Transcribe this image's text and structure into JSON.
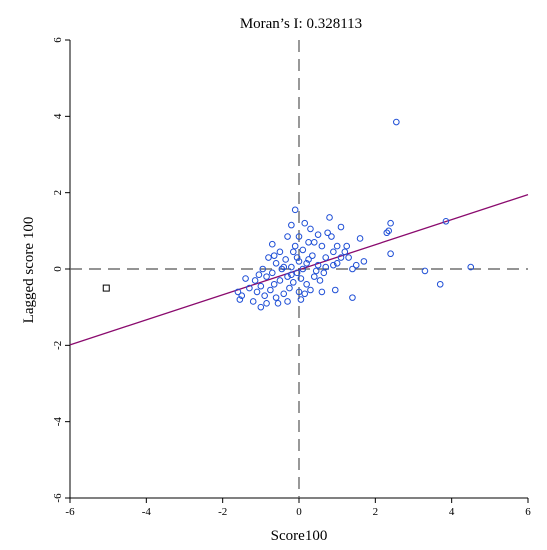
{
  "chart_data": {
    "type": "scatter",
    "title": "Moran’s I: 0.328113",
    "xlabel": "Score100",
    "ylabel": "Lagged score 100",
    "xlim": [
      -6,
      6
    ],
    "ylim": [
      -6,
      6
    ],
    "xticks": [
      "-6",
      "-4",
      "-2",
      "0",
      "2",
      "4",
      "6"
    ],
    "yticks": [
      "-6",
      "-4",
      "-2",
      "0",
      "2",
      "4",
      "6"
    ],
    "grid": false,
    "regression_line": {
      "slope": 0.328113,
      "intercept": -0.02,
      "color": "#8a0a6e"
    },
    "reference_lines": {
      "x": 0,
      "y": 0,
      "style": "dashed",
      "color": "#555555"
    },
    "point_color": "#1f4fd6",
    "highlighted_point": {
      "x": -5.05,
      "y": -0.5,
      "marker": "square",
      "color": "#000000"
    },
    "points": [
      [
        2.55,
        3.85
      ],
      [
        3.85,
        1.25
      ],
      [
        4.5,
        0.05
      ],
      [
        3.7,
        -0.4
      ],
      [
        3.3,
        -0.05
      ],
      [
        2.4,
        1.2
      ],
      [
        2.35,
        1.0
      ],
      [
        2.3,
        0.95
      ],
      [
        2.4,
        0.4
      ],
      [
        1.7,
        0.2
      ],
      [
        1.6,
        0.8
      ],
      [
        1.5,
        0.1
      ],
      [
        1.4,
        0.0
      ],
      [
        1.4,
        -0.75
      ],
      [
        1.3,
        0.3
      ],
      [
        1.2,
        0.45
      ],
      [
        1.1,
        1.1
      ],
      [
        1.1,
        0.3
      ],
      [
        1.0,
        0.6
      ],
      [
        1.0,
        0.15
      ],
      [
        0.95,
        -0.55
      ],
      [
        0.9,
        0.45
      ],
      [
        0.85,
        0.85
      ],
      [
        0.8,
        1.35
      ],
      [
        0.75,
        0.95
      ],
      [
        0.7,
        0.3
      ],
      [
        0.7,
        0.05
      ],
      [
        0.65,
        -0.1
      ],
      [
        0.6,
        0.6
      ],
      [
        0.55,
        -0.3
      ],
      [
        0.5,
        0.9
      ],
      [
        0.5,
        0.1
      ],
      [
        0.45,
        -0.05
      ],
      [
        0.4,
        -0.2
      ],
      [
        0.35,
        0.35
      ],
      [
        0.3,
        1.05
      ],
      [
        0.3,
        -0.55
      ],
      [
        0.25,
        0.7
      ],
      [
        0.2,
        0.15
      ],
      [
        0.2,
        -0.4
      ],
      [
        0.15,
        1.2
      ],
      [
        0.1,
        0.5
      ],
      [
        0.1,
        0.0
      ],
      [
        0.05,
        -0.25
      ],
      [
        0.05,
        -0.8
      ],
      [
        0.0,
        0.85
      ],
      [
        0.0,
        -0.6
      ],
      [
        -0.05,
        0.3
      ],
      [
        -0.05,
        -0.1
      ],
      [
        -0.1,
        1.55
      ],
      [
        -0.1,
        0.6
      ],
      [
        -0.15,
        -0.35
      ],
      [
        -0.2,
        1.15
      ],
      [
        -0.2,
        0.05
      ],
      [
        -0.25,
        -0.5
      ],
      [
        -0.3,
        0.85
      ],
      [
        -0.3,
        -0.2
      ],
      [
        -0.35,
        0.25
      ],
      [
        -0.4,
        -0.65
      ],
      [
        -0.45,
        0.0
      ],
      [
        -0.5,
        0.45
      ],
      [
        -0.5,
        -0.3
      ],
      [
        -0.55,
        -0.9
      ],
      [
        -0.6,
        0.15
      ],
      [
        -0.65,
        -0.4
      ],
      [
        -0.7,
        0.65
      ],
      [
        -0.7,
        -0.1
      ],
      [
        -0.75,
        -0.55
      ],
      [
        -0.8,
        0.3
      ],
      [
        -0.85,
        -0.2
      ],
      [
        -0.9,
        -0.7
      ],
      [
        -0.95,
        0.0
      ],
      [
        -1.0,
        -0.45
      ],
      [
        -1.0,
        -1.0
      ],
      [
        -1.05,
        -0.15
      ],
      [
        -1.1,
        -0.6
      ],
      [
        -1.15,
        -0.3
      ],
      [
        -1.2,
        -0.85
      ],
      [
        -1.3,
        -0.5
      ],
      [
        -1.4,
        -0.25
      ],
      [
        -1.5,
        -0.7
      ],
      [
        -1.6,
        -0.6
      ],
      [
        -1.55,
        -0.8
      ],
      [
        -0.3,
        -0.85
      ],
      [
        -0.2,
        -0.15
      ],
      [
        0.4,
        0.7
      ],
      [
        0.6,
        -0.6
      ],
      [
        -0.6,
        -0.75
      ],
      [
        -0.4,
        0.05
      ],
      [
        0.9,
        0.1
      ],
      [
        1.25,
        0.6
      ],
      [
        -0.15,
        0.45
      ],
      [
        0.25,
        0.25
      ],
      [
        -0.85,
        -0.9
      ],
      [
        0.0,
        0.2
      ],
      [
        -0.65,
        0.35
      ],
      [
        0.15,
        -0.65
      ]
    ]
  }
}
